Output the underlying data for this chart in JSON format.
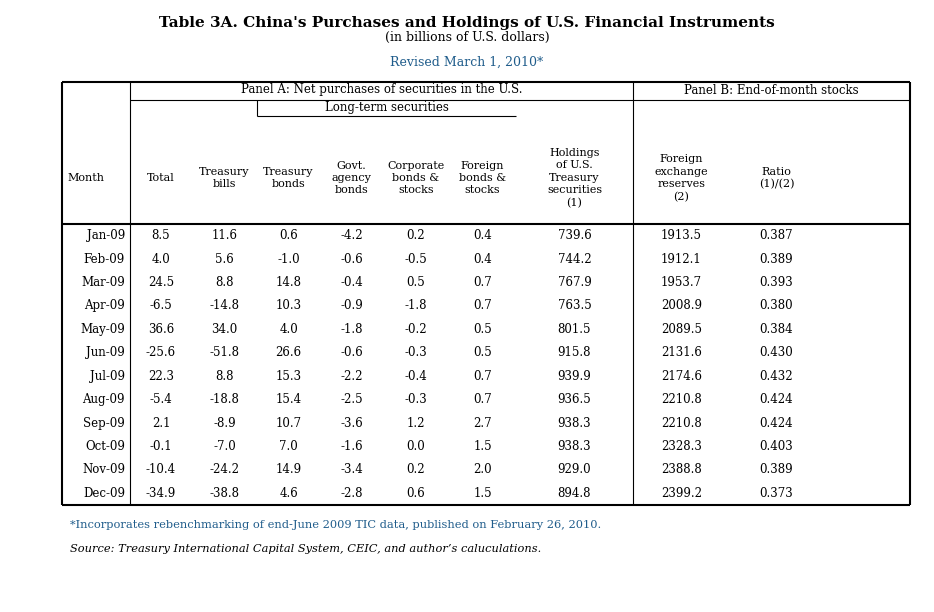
{
  "title": "Table 3A. China's Purchases and Holdings of U.S. Financial Instruments",
  "subtitle": "(in billions of U.S. dollars)",
  "revised": "Revised March 1, 2010*",
  "panel_a_label": "Panel A: Net purchases of securities in the U.S.",
  "long_term_label": "Long-term securities",
  "panel_b_label": "Panel B: End-of-month stocks",
  "col_headers": [
    "Month",
    "Total",
    "Treasury\nbills",
    "Treasury\nbonds",
    "Govt.\nagency\nbonds",
    "Corporate\nbonds &\nstocks",
    "Foreign\nbonds &\nstocks",
    "Holdings\nof U.S.\nTreasury\nsecurities\n(1)",
    "Foreign\nexchange\nreserves\n(2)",
    "Ratio\n(1)/(2)"
  ],
  "rows": [
    [
      "Jan-09",
      "8.5",
      "11.6",
      "0.6",
      "-4.2",
      "0.2",
      "0.4",
      "739.6",
      "1913.5",
      "0.387"
    ],
    [
      "Feb-09",
      "4.0",
      "5.6",
      "-1.0",
      "-0.6",
      "-0.5",
      "0.4",
      "744.2",
      "1912.1",
      "0.389"
    ],
    [
      "Mar-09",
      "24.5",
      "8.8",
      "14.8",
      "-0.4",
      "0.5",
      "0.7",
      "767.9",
      "1953.7",
      "0.393"
    ],
    [
      "Apr-09",
      "-6.5",
      "-14.8",
      "10.3",
      "-0.9",
      "-1.8",
      "0.7",
      "763.5",
      "2008.9",
      "0.380"
    ],
    [
      "May-09",
      "36.6",
      "34.0",
      "4.0",
      "-1.8",
      "-0.2",
      "0.5",
      "801.5",
      "2089.5",
      "0.384"
    ],
    [
      "Jun-09",
      "-25.6",
      "-51.8",
      "26.6",
      "-0.6",
      "-0.3",
      "0.5",
      "915.8",
      "2131.6",
      "0.430"
    ],
    [
      "Jul-09",
      "22.3",
      "8.8",
      "15.3",
      "-2.2",
      "-0.4",
      "0.7",
      "939.9",
      "2174.6",
      "0.432"
    ],
    [
      "Aug-09",
      "-5.4",
      "-18.8",
      "15.4",
      "-2.5",
      "-0.3",
      "0.7",
      "936.5",
      "2210.8",
      "0.424"
    ],
    [
      "Sep-09",
      "2.1",
      "-8.9",
      "10.7",
      "-3.6",
      "1.2",
      "2.7",
      "938.3",
      "2210.8",
      "0.424"
    ],
    [
      "Oct-09",
      "-0.1",
      "-7.0",
      "7.0",
      "-1.6",
      "0.0",
      "1.5",
      "938.3",
      "2328.3",
      "0.403"
    ],
    [
      "Nov-09",
      "-10.4",
      "-24.2",
      "14.9",
      "-3.4",
      "0.2",
      "2.0",
      "929.0",
      "2388.8",
      "0.389"
    ],
    [
      "Dec-09",
      "-34.9",
      "-38.8",
      "4.6",
      "-2.8",
      "0.6",
      "1.5",
      "894.8",
      "2399.2",
      "0.373"
    ]
  ],
  "footnote": "*Incorporates rebenchmarking of end-June 2009 TIC data, published on February 26, 2010.",
  "source": "Source: Treasury International Capital System, CEIC, and author’s caluculations.",
  "bg_color": "#ffffff",
  "text_color": "#000000",
  "title_color": "#000000",
  "revised_color": "#1f5c8b",
  "footnote_color": "#1f5c8b"
}
